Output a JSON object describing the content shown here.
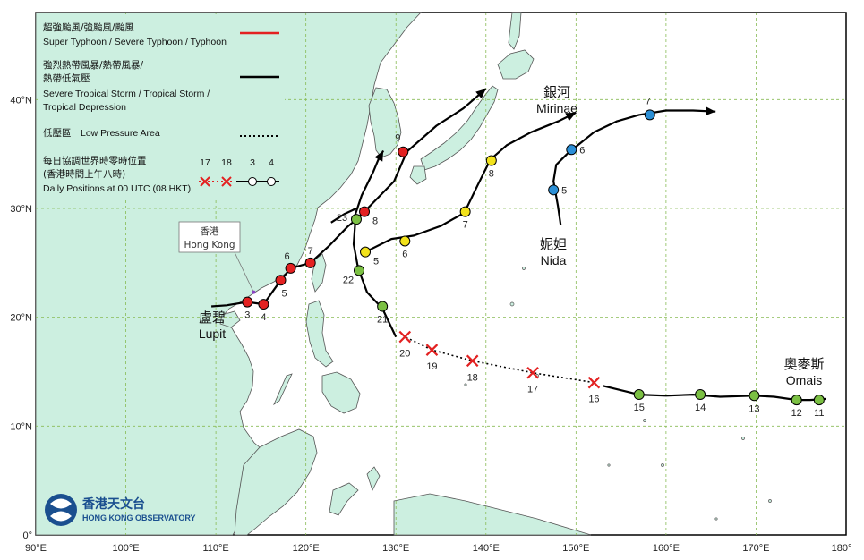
{
  "colors": {
    "land": "#ccefe0",
    "sea": "#ffffff",
    "coast": "#555555",
    "grid": "#88bb55",
    "typhoon": "#e32121",
    "tropical_storm": "#000000",
    "blue_marker": "#2b8fd6",
    "yellow_marker": "#f2e21b",
    "green_marker": "#7bc043",
    "red_marker": "#e32121",
    "logo": "#1a4f8f"
  },
  "axes": {
    "x_ticks": [
      "90°E",
      "100°E",
      "110°E",
      "120°E",
      "130°E",
      "140°E",
      "150°E",
      "160°E",
      "170°E",
      "180°"
    ],
    "y_ticks": [
      "0°",
      "10°N",
      "20°N",
      "30°N",
      "40°N"
    ],
    "lon_range": [
      90,
      180
    ],
    "lat_range": [
      0,
      48
    ]
  },
  "legend": {
    "typhoon_zh": "超強颱風/強颱風/颱風",
    "typhoon_en": "Super Typhoon / Severe Typhoon / Typhoon",
    "storm_zh_1": "強烈熱帶風暴/熱帶風暴/",
    "storm_zh_2": "熱帶低氣壓",
    "storm_en_1": "Severe Tropical Storm / Tropical Storm /",
    "storm_en_2": "Tropical Depression",
    "lpa_zh": "低壓區",
    "lpa_en": "Low Pressure Area",
    "daily_zh_1": "每日協調世界時零時位置",
    "daily_zh_2": "(香港時間上午八時)",
    "daily_en": "Daily Positions at 00 UTC (08 HKT)",
    "sample_days": [
      "17",
      "18",
      "3",
      "4"
    ]
  },
  "hong_kong": {
    "zh": "香港",
    "en": "Hong Kong",
    "lon": 114.2,
    "lat": 22.3
  },
  "cyclones": [
    {
      "zh": "盧碧",
      "en": "Lupit",
      "track": [
        [
          109.5,
          21.0
        ],
        [
          111.2,
          21.1
        ],
        [
          113.5,
          21.4
        ],
        [
          115.3,
          21.2
        ],
        [
          116.0,
          22.0
        ],
        [
          117.2,
          23.4
        ],
        [
          118.3,
          24.5
        ],
        [
          120.5,
          25.0
        ],
        [
          122.5,
          26.5
        ],
        [
          124.6,
          28.3
        ],
        [
          125.6,
          29.0
        ],
        [
          126.5,
          29.7
        ],
        [
          129.8,
          32.5
        ],
        [
          131.2,
          35.2
        ],
        [
          134.5,
          37.6
        ],
        [
          137.5,
          39.2
        ],
        [
          140.0,
          41.0
        ]
      ],
      "markers": [
        {
          "lon": 113.5,
          "lat": 21.4,
          "day": "3",
          "color": "red"
        },
        {
          "lon": 115.3,
          "lat": 21.2,
          "day": "4",
          "color": "red"
        },
        {
          "lon": 117.2,
          "lat": 23.4,
          "day": "5",
          "color": "red"
        },
        {
          "lon": 118.3,
          "lat": 24.5,
          "day": "6",
          "color": "red"
        },
        {
          "lon": 120.5,
          "lat": 25.0,
          "day": "7",
          "color": "red"
        },
        {
          "lon": 126.5,
          "lat": 29.7,
          "day": "8",
          "color": "red"
        },
        {
          "lon": 130.8,
          "lat": 35.2,
          "day": "9",
          "color": "red"
        }
      ]
    },
    {
      "zh": "銀河",
      "en": "Mirinae",
      "track": [
        [
          122.8,
          28.7
        ],
        [
          124.3,
          29.5
        ],
        [
          125.6,
          30.0
        ]
      ],
      "markers": [
        {
          "lon": 125.6,
          "lat": 29.0,
          "day": "23",
          "color": "green"
        }
      ]
    },
    {
      "zh": "",
      "en": "",
      "track": [
        [
          125.3,
          29.0
        ],
        [
          126.2,
          31.2
        ],
        [
          127.5,
          33.4
        ],
        [
          128.0,
          34.4
        ],
        [
          128.6,
          35.3
        ]
      ],
      "markers": []
    },
    {
      "zh": "",
      "en": "",
      "track": [
        [
          130.0,
          18.2
        ],
        [
          128.5,
          20.8
        ],
        [
          126.8,
          22.3
        ],
        [
          125.8,
          24.5
        ],
        [
          125.3,
          26.7
        ],
        [
          125.5,
          29.0
        ]
      ],
      "markers": [
        {
          "lon": 128.5,
          "lat": 21.0,
          "day": "21",
          "color": "green"
        },
        {
          "lon": 125.9,
          "lat": 24.3,
          "day": "22",
          "color": "green"
        }
      ]
    },
    {
      "zh": "",
      "en": "",
      "track": [
        [
          126.6,
          26.0
        ],
        [
          129.5,
          27.2
        ],
        [
          132.0,
          27.5
        ],
        [
          135.0,
          28.4
        ],
        [
          137.6,
          29.6
        ],
        [
          139.0,
          32.0
        ],
        [
          140.5,
          34.5
        ],
        [
          142.3,
          35.8
        ],
        [
          145.0,
          37.0
        ],
        [
          148.0,
          38.0
        ],
        [
          150.0,
          38.8
        ]
      ],
      "markers": [
        {
          "lon": 126.6,
          "lat": 26.0,
          "day": "5",
          "color": "yellow"
        },
        {
          "lon": 131.0,
          "lat": 27.0,
          "day": "6",
          "color": "yellow"
        },
        {
          "lon": 137.7,
          "lat": 29.7,
          "day": "7",
          "color": "yellow"
        },
        {
          "lon": 140.6,
          "lat": 34.4,
          "day": "8",
          "color": "yellow"
        }
      ]
    },
    {
      "zh": "妮妲",
      "en": "Nida",
      "track": [
        [
          148.3,
          28.5
        ],
        [
          148.0,
          30.2
        ],
        [
          147.5,
          32.5
        ],
        [
          147.8,
          34.0
        ],
        [
          149.0,
          35.0
        ],
        [
          150.2,
          35.8
        ],
        [
          152.0,
          37.0
        ],
        [
          154.5,
          38.0
        ],
        [
          157.0,
          38.6
        ],
        [
          160.0,
          39.0
        ],
        [
          163.0,
          39.0
        ],
        [
          165.5,
          38.9
        ]
      ],
      "markers": [
        {
          "lon": 147.5,
          "lat": 31.7,
          "day": "5",
          "color": "blue"
        },
        {
          "lon": 149.5,
          "lat": 35.4,
          "day": "6",
          "color": "blue"
        },
        {
          "lon": 158.2,
          "lat": 38.6,
          "day": "7",
          "color": "blue"
        }
      ]
    },
    {
      "zh": "奧麥斯",
      "en": "Omais",
      "track": [
        [
          177.8,
          12.5
        ],
        [
          176.0,
          12.4
        ],
        [
          174.5,
          12.4
        ],
        [
          172.0,
          12.7
        ],
        [
          169.8,
          12.8
        ],
        [
          166.0,
          12.7
        ],
        [
          163.0,
          12.9
        ],
        [
          160.0,
          12.8
        ],
        [
          157.0,
          12.9
        ],
        [
          155.0,
          13.3
        ],
        [
          153.0,
          13.7
        ]
      ],
      "markers": [
        {
          "lon": 177.0,
          "lat": 12.4,
          "day": "11",
          "color": "green"
        },
        {
          "lon": 174.5,
          "lat": 12.4,
          "day": "12",
          "color": "green"
        },
        {
          "lon": 169.8,
          "lat": 12.8,
          "day": "13",
          "color": "green"
        },
        {
          "lon": 163.8,
          "lat": 12.9,
          "day": "14",
          "color": "green"
        },
        {
          "lon": 157.0,
          "lat": 12.9,
          "day": "15",
          "color": "green"
        }
      ]
    }
  ],
  "lpa_points": [
    {
      "lon": 152.0,
      "lat": 14.0,
      "day": "16"
    },
    {
      "lon": 145.2,
      "lat": 14.9,
      "day": "17"
    },
    {
      "lon": 138.5,
      "lat": 16.0,
      "day": "18"
    },
    {
      "lon": 134.0,
      "lat": 17.0,
      "day": "19"
    },
    {
      "lon": 131.0,
      "lat": 18.2,
      "day": "20"
    }
  ],
  "logo": {
    "zh": "香港天文台",
    "en": "HONG KONG OBSERVATORY"
  }
}
